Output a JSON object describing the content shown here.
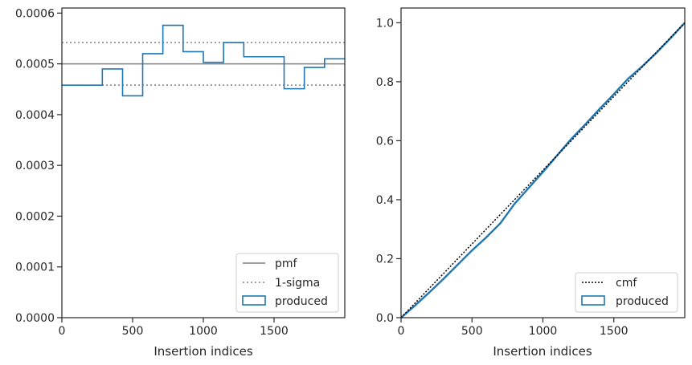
{
  "chart_data": [
    {
      "type": "line",
      "panel": "left",
      "xlabel": "Insertion indices",
      "ylabel": "",
      "xlim": [
        0,
        2000
      ],
      "ylim": [
        0,
        0.00061
      ],
      "x_ticks": [
        0,
        500,
        1000,
        1500
      ],
      "x_tick_labels": [
        "0",
        "500",
        "1000",
        "1500"
      ],
      "y_ticks": [
        0,
        0.0001,
        0.0002,
        0.0003,
        0.0004,
        0.0005,
        0.0006
      ],
      "y_tick_labels": [
        "0.0000",
        "0.0001",
        "0.0002",
        "0.0003",
        "0.0004",
        "0.0005",
        "0.0006"
      ],
      "grid": false,
      "legend_position": "lower-right",
      "colors": {
        "pmf": "#808080",
        "sigma": "#808080",
        "produced": "#1f77b4"
      },
      "pmf": {
        "name": "pmf",
        "value": 0.0005
      },
      "sigma": {
        "name": "1-sigma",
        "values": [
          0.000458,
          0.000542
        ]
      },
      "series": [
        {
          "name": "produced",
          "bin_edges": [
            0,
            286,
            429,
            571,
            714,
            857,
            1000,
            1143,
            1286,
            1429,
            1571,
            1714,
            1857,
            2000
          ],
          "values": [
            0.000458,
            0.00049,
            0.000437,
            0.00052,
            0.000576,
            0.000524,
            0.000503,
            0.000542,
            0.000514,
            0.000514,
            0.000451,
            0.000493,
            0.00051
          ]
        }
      ]
    },
    {
      "type": "line",
      "panel": "right",
      "xlabel": "Insertion indices",
      "ylabel": "",
      "xlim": [
        0,
        2000
      ],
      "ylim": [
        0,
        1.05
      ],
      "x_ticks": [
        0,
        500,
        1000,
        1500
      ],
      "x_tick_labels": [
        "0",
        "500",
        "1000",
        "1500"
      ],
      "y_ticks": [
        0,
        0.2,
        0.4,
        0.6,
        0.8,
        1.0
      ],
      "y_tick_labels": [
        "0.0",
        "0.2",
        "0.4",
        "0.6",
        "0.8",
        "1.0"
      ],
      "grid": false,
      "legend_position": "lower-right",
      "colors": {
        "cmf": "#000000",
        "produced": "#1f77b4"
      },
      "cmf": {
        "name": "cmf",
        "x": [
          0,
          2000
        ],
        "y": [
          0,
          1.0
        ]
      },
      "series": [
        {
          "name": "produced",
          "x": [
            0,
            100,
            200,
            300,
            400,
            500,
            600,
            700,
            800,
            900,
            1000,
            1100,
            1200,
            1300,
            1400,
            1500,
            1600,
            1700,
            1800,
            1900,
            2000
          ],
          "y": [
            0,
            0.042,
            0.086,
            0.132,
            0.18,
            0.228,
            0.272,
            0.32,
            0.386,
            0.44,
            0.494,
            0.55,
            0.606,
            0.656,
            0.708,
            0.758,
            0.81,
            0.852,
            0.898,
            0.948,
            1.0
          ]
        }
      ]
    }
  ]
}
